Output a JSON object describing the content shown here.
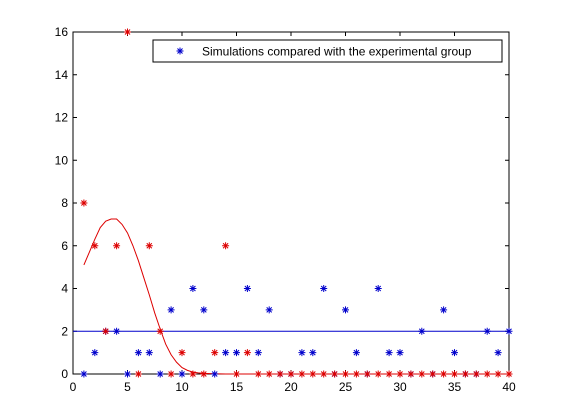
{
  "chart_data": {
    "type": "scatter",
    "xlim": [
      0,
      40
    ],
    "ylim": [
      0,
      16
    ],
    "xticks": [
      0,
      5,
      10,
      15,
      20,
      25,
      30,
      35,
      40
    ],
    "yticks": [
      0,
      2,
      4,
      6,
      8,
      10,
      12,
      14,
      16
    ],
    "grid": false,
    "legend_position": "top-right",
    "legend": {
      "label": "Simulations compared with the experimental group",
      "color": "#0000cc",
      "marker": "asterisk"
    },
    "blue_points": {
      "color": "#0000cc",
      "x": [
        1,
        2,
        3,
        4,
        5,
        6,
        7,
        8,
        9,
        10,
        11,
        12,
        13,
        14,
        15,
        16,
        17,
        18,
        19,
        20,
        21,
        22,
        23,
        24,
        25,
        26,
        27,
        28,
        29,
        30,
        31,
        32,
        33,
        34,
        35,
        36,
        37,
        38,
        39,
        40
      ],
      "y": [
        0,
        1,
        2,
        2,
        0,
        1,
        1,
        0,
        3,
        0,
        4,
        3,
        0,
        1,
        1,
        4,
        1,
        3,
        0,
        0,
        1,
        1,
        4,
        0,
        3,
        1,
        0,
        4,
        1,
        1,
        0,
        2,
        0,
        3,
        1,
        0,
        0,
        2,
        1,
        2
      ]
    },
    "red_points": {
      "color": "#dd0000",
      "x": [
        1,
        2,
        3,
        4,
        5,
        6,
        7,
        8,
        9,
        10,
        11,
        12,
        13,
        14,
        15,
        16,
        17,
        18,
        19,
        20,
        21,
        22,
        23,
        24,
        25,
        26,
        27,
        28,
        29,
        30,
        31,
        32,
        33,
        34,
        35,
        36,
        37,
        38,
        39,
        40
      ],
      "y": [
        8,
        6,
        2,
        6,
        16,
        0,
        6,
        2,
        0,
        1,
        0,
        0,
        1,
        6,
        0,
        1,
        0,
        0,
        0,
        0,
        0,
        0,
        0,
        0,
        0,
        0,
        0,
        0,
        0,
        0,
        0,
        0,
        0,
        0,
        0,
        0,
        0,
        0,
        0,
        0
      ]
    },
    "red_curve": {
      "color": "#dd0000",
      "x": [
        1,
        1.5,
        2,
        2.5,
        3,
        3.5,
        4,
        4.5,
        5,
        5.5,
        6,
        6.5,
        7,
        7.5,
        8,
        8.5,
        9,
        9.5,
        10,
        10.5,
        11,
        11.5,
        12,
        13,
        14,
        15,
        16,
        18,
        20,
        25,
        30,
        35,
        40
      ],
      "y": [
        5.1,
        5.7,
        6.3,
        6.85,
        7.15,
        7.25,
        7.25,
        7.0,
        6.6,
        6.0,
        5.3,
        4.5,
        3.7,
        2.85,
        2.1,
        1.4,
        0.9,
        0.55,
        0.3,
        0.17,
        0.09,
        0.05,
        0.03,
        0.01,
        0,
        0,
        0,
        0,
        0,
        0,
        0,
        0,
        0
      ]
    },
    "blue_reference_line": {
      "color": "#0000cc",
      "y": 2
    }
  }
}
